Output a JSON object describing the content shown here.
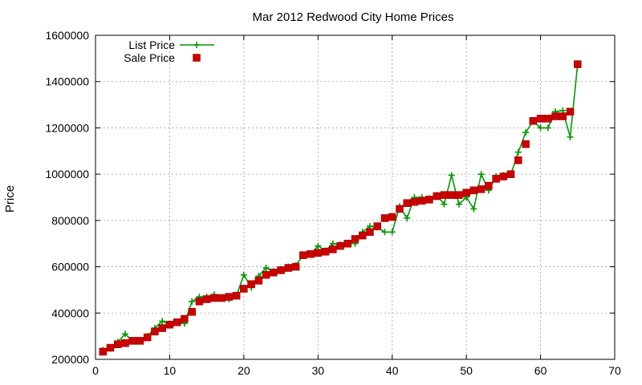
{
  "chart_data": {
    "type": "line",
    "title": "Mar 2012 Redwood City Home Prices",
    "xlabel": "",
    "ylabel": "Price",
    "xlim": [
      0,
      70
    ],
    "ylim": [
      200000,
      1600000
    ],
    "x_ticks": [
      "0",
      "10",
      "20",
      "30",
      "40",
      "50",
      "60",
      "70"
    ],
    "y_ticks": [
      "200000",
      "400000",
      "600000",
      "800000",
      "1000000",
      "1200000",
      "1400000",
      "1600000"
    ],
    "grid": true,
    "legend_position": "top-left",
    "x": [
      1,
      2,
      3,
      4,
      5,
      6,
      7,
      8,
      9,
      10,
      11,
      12,
      13,
      14,
      15,
      16,
      17,
      18,
      19,
      20,
      21,
      22,
      23,
      24,
      25,
      26,
      27,
      28,
      29,
      30,
      31,
      32,
      33,
      34,
      35,
      36,
      37,
      38,
      39,
      40,
      41,
      42,
      43,
      44,
      45,
      46,
      47,
      48,
      49,
      50,
      51,
      52,
      53,
      54,
      55,
      56,
      57,
      58,
      59,
      60,
      61,
      62,
      63,
      64,
      65
    ],
    "series": [
      {
        "name": "List Price",
        "style": "line-points",
        "color": "#009900",
        "marker": "plus",
        "values": [
          240000,
          250000,
          275000,
          310000,
          278000,
          280000,
          300000,
          335000,
          365000,
          350000,
          360000,
          355000,
          450000,
          470000,
          470000,
          480000,
          465000,
          460000,
          475000,
          565000,
          510000,
          560000,
          595000,
          580000,
          590000,
          600000,
          605000,
          650000,
          655000,
          690000,
          670000,
          700000,
          695000,
          700000,
          700000,
          750000,
          775000,
          770000,
          750000,
          750000,
          860000,
          810000,
          900000,
          900000,
          895000,
          910000,
          870000,
          995000,
          870000,
          900000,
          850000,
          1000000,
          930000,
          990000,
          995000,
          1000000,
          1095000,
          1180000,
          1230000,
          1200000,
          1200000,
          1270000,
          1275000,
          1160000,
          1475000
        ]
      },
      {
        "name": "Sale Price",
        "style": "points",
        "color": "#cc0000",
        "marker": "square",
        "values": [
          233000,
          250000,
          265000,
          270000,
          280000,
          280000,
          295000,
          320000,
          335000,
          350000,
          360000,
          375000,
          405000,
          450000,
          460000,
          465000,
          465000,
          470000,
          475000,
          505000,
          525000,
          540000,
          565000,
          575000,
          585000,
          595000,
          600000,
          650000,
          655000,
          660000,
          665000,
          675000,
          690000,
          700000,
          720000,
          735000,
          750000,
          775000,
          810000,
          815000,
          850000,
          875000,
          880000,
          885000,
          890000,
          905000,
          910000,
          910000,
          910000,
          920000,
          930000,
          935000,
          950000,
          980000,
          990000,
          1000000,
          1060000,
          1130000,
          1230000,
          1240000,
          1240000,
          1250000,
          1250000,
          1270000,
          1475000
        ]
      }
    ]
  }
}
